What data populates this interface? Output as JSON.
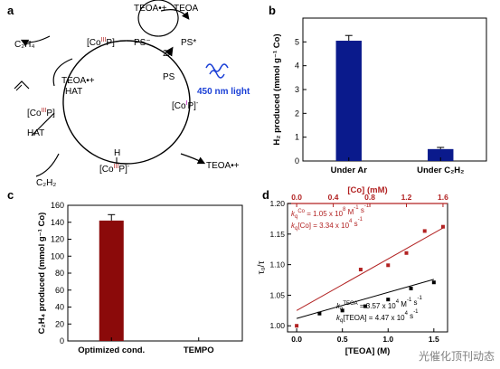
{
  "panels": {
    "a": "a",
    "b": "b",
    "c": "c",
    "d": "d"
  },
  "scheme": {
    "species": {
      "c2h4_top": "C₂H₄",
      "teoa_rad": "TEOA•+",
      "teoa": "TEOA",
      "ps_minus": "PS⁻",
      "ps_star": "PS*",
      "ps": "PS",
      "x2": "2x",
      "light": "450 nm light",
      "teoa_hat": "TEOA•+",
      "hat1": "HAT",
      "hat2": "HAT",
      "teoa_bottom": "TEOA•+",
      "c2h2": "C₂H₂",
      "h": "H"
    },
    "colors": {
      "co_red": "#b22222",
      "co_purple": "#b000b0",
      "light_blue": "#1a3fd6"
    }
  },
  "chart_data": [
    {
      "id": "b",
      "type": "bar",
      "categories": [
        "Under Ar",
        "Under C₂H₂"
      ],
      "values": [
        5.05,
        0.5
      ],
      "errors": [
        0.22,
        0.07
      ],
      "ylabel": "H₂ produced (mmol g⁻¹ Co)",
      "ylim": [
        0,
        6
      ],
      "yticks": [
        0,
        1,
        2,
        3,
        4,
        5
      ],
      "color": "#0a1a8c"
    },
    {
      "id": "c",
      "type": "bar",
      "categories": [
        "Optimized cond.",
        "TEMPO"
      ],
      "values": [
        142,
        0
      ],
      "errors": [
        7,
        0
      ],
      "ylabel": "C₂H₄ produced (mmol g⁻¹ Co)",
      "ylim": [
        0,
        160
      ],
      "yticks": [
        0,
        20,
        40,
        60,
        80,
        100,
        120,
        140,
        160
      ],
      "color": "#8b0a0a"
    },
    {
      "id": "d",
      "type": "scatter",
      "xlabel": "[TEOA] (M)",
      "x2label": "[Co] (mM)",
      "ylabel": "τ₀/τ",
      "xlim": [
        -0.1,
        1.65
      ],
      "x2lim": [
        0.0,
        1.6
      ],
      "ylim": [
        0.99,
        1.2
      ],
      "yticks": [
        1.0,
        1.05,
        1.1,
        1.15,
        1.2
      ],
      "xticks": [
        0.0,
        0.5,
        1.0,
        1.5
      ],
      "x2ticks": [
        0.0,
        0.4,
        0.8,
        1.2,
        1.6
      ],
      "series": [
        {
          "name": "Co",
          "color": "#b22222",
          "x": [
            0.0,
            0.7,
            1.0,
            1.2,
            1.4,
            1.6
          ],
          "y": [
            1.0,
            1.092,
            1.099,
            1.119,
            1.155,
            1.162
          ],
          "fit": [
            [
              0.0,
              1.025
            ],
            [
              1.6,
              1.16
            ]
          ]
        },
        {
          "name": "TEOA",
          "color": "#000000",
          "x": [
            0.25,
            0.5,
            0.75,
            1.0,
            1.25,
            1.5
          ],
          "y": [
            1.02,
            1.025,
            1.032,
            1.043,
            1.061,
            1.071
          ],
          "fit": [
            [
              0.0,
              1.012
            ],
            [
              1.5,
              1.076
            ]
          ]
        }
      ],
      "annotations": {
        "co1_a": "k",
        "co1_b": "q",
        "co1_c": "Co",
        "co1_d": " = 1.05 x 10",
        "co1_e": "8",
        "co1_f": " M",
        "co1_g": "-1",
        "co1_h": " s",
        "co1_i": "-1",
        "co2_a": "k",
        "co2_b": "q",
        "co2_c": "[Co] = 3.34 x 10",
        "co2_d": "4",
        "co2_e": " s",
        "co2_f": "-1",
        "te1_a": "k",
        "te1_b": "q",
        "te1_c": "TEOA",
        "te1_d": " = 3.57 x 10",
        "te1_e": "4",
        "te1_f": " M",
        "te1_g": "-1",
        "te1_h": " s",
        "te1_i": "-1",
        "te2_a": "k",
        "te2_b": "q",
        "te2_c": "[TEOA] = 4.47 x 10",
        "te2_d": "4",
        "te2_e": " s",
        "te2_f": "-1"
      }
    }
  ],
  "watermark": "光催化顶刊动态"
}
